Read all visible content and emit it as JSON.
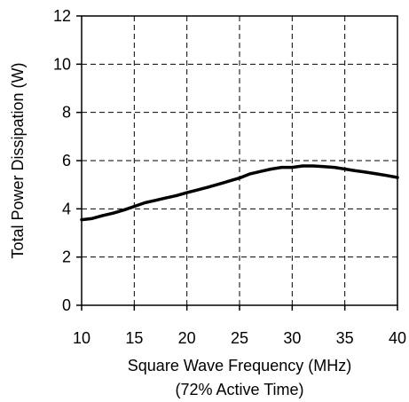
{
  "chart_data": {
    "type": "line",
    "title": "",
    "xlabel": "Square Wave Frequency (MHz)",
    "xlabel_line2": "(72% Active Time)",
    "ylabel": "Total Power Dissipation (W)",
    "xlim": [
      10,
      40
    ],
    "ylim": [
      0,
      12
    ],
    "x_ticks": [
      "10",
      "15",
      "20",
      "25",
      "30",
      "35",
      "40"
    ],
    "y_ticks": [
      "0",
      "2",
      "4",
      "6",
      "8",
      "10",
      "12"
    ],
    "grid": "dashed",
    "legend": "none",
    "series": [
      {
        "color": "#000000",
        "x": [
          10,
          11,
          12,
          13,
          14,
          15,
          16,
          17,
          18,
          19,
          20,
          21,
          22,
          23,
          24,
          25,
          26,
          27,
          28,
          29,
          30,
          31,
          32,
          33,
          34,
          35,
          36,
          37,
          38,
          39,
          40
        ],
        "y": [
          3.55,
          3.6,
          3.72,
          3.82,
          3.95,
          4.1,
          4.25,
          4.35,
          4.45,
          4.55,
          4.67,
          4.78,
          4.9,
          5.02,
          5.15,
          5.28,
          5.45,
          5.55,
          5.65,
          5.72,
          5.72,
          5.78,
          5.78,
          5.75,
          5.72,
          5.65,
          5.58,
          5.52,
          5.45,
          5.38,
          5.3
        ]
      }
    ]
  }
}
